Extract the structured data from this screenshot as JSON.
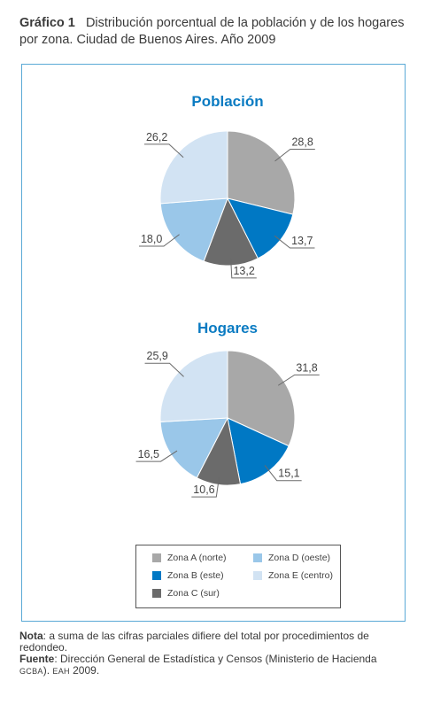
{
  "caption": {
    "label": "Gráfico 1",
    "text": "Distribución porcentual de la población y de los hogares por zona. Ciudad de Buenos Aires. Año 2009"
  },
  "chart_data": [
    {
      "type": "pie",
      "title": "Población",
      "categories": [
        "Zona A (norte)",
        "Zona B (este)",
        "Zona C (sur)",
        "Zona D (oeste)",
        "Zona E (centro)"
      ],
      "values": [
        28.8,
        13.7,
        13.2,
        18.0,
        26.2
      ],
      "labels": [
        "28,8",
        "13,7",
        "13,2",
        "18,0",
        "26,2"
      ],
      "legend_position": "bottom"
    },
    {
      "type": "pie",
      "title": "Hogares",
      "categories": [
        "Zona A (norte)",
        "Zona B (este)",
        "Zona C (sur)",
        "Zona D (oeste)",
        "Zona E (centro)"
      ],
      "values": [
        31.8,
        15.1,
        10.6,
        16.5,
        25.9
      ],
      "labels": [
        "31,8",
        "15,1",
        "10,6",
        "16,5",
        "25,9"
      ],
      "legend_position": "bottom"
    }
  ],
  "legend": {
    "items": [
      {
        "label": "Zona A (norte)",
        "color": "#a8a8a8"
      },
      {
        "label": "Zona B (este)",
        "color": "#0078c4"
      },
      {
        "label": "Zona C (sur)",
        "color": "#6b6b6b"
      },
      {
        "label": "Zona D (oeste)",
        "color": "#9ac7e9"
      },
      {
        "label": "Zona E (centro)",
        "color": "#d2e3f3"
      }
    ]
  },
  "colors": {
    "title": "#0a7bc2",
    "frame": "#5aa9d6",
    "leader": "#6a6a6a"
  },
  "notes": {
    "nota_label": "Nota",
    "nota_text": ": a suma de las cifras parciales difiere del total por procedimientos de redondeo.",
    "fuente_label": "Fuente",
    "fuente_text1": ": Dirección General de Estadística y Censos (Ministerio de Hacienda ",
    "fuente_sc1": "GCBA",
    "fuente_text2": "). ",
    "fuente_sc2": "EAH",
    "fuente_text3": " 2009."
  }
}
